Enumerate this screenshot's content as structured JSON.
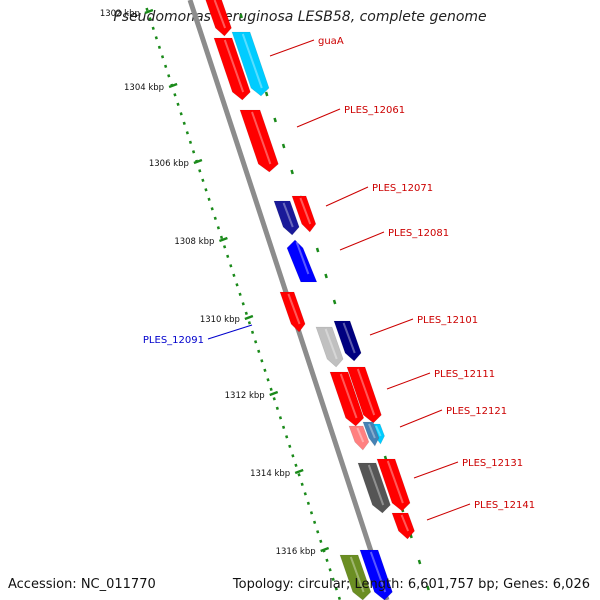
{
  "header": {
    "title": "Pseudomonas aeruginosa LESB58, complete genome"
  },
  "footer": {
    "accession": "Accession: NC_011770",
    "topology": "Topology: circular; Length: 6,601,757 bp; Genes: 6,026"
  },
  "colors": {
    "backbone": "#8c8c8c",
    "tick": "#1a8a1a",
    "label_red": "#cc0000",
    "label_blue": "#0000cc"
  },
  "scale": {
    "ticks": [
      "1302 kbp",
      "1304 kbp",
      "1306 kbp",
      "1308 kbp",
      "1310 kbp",
      "1312 kbp",
      "1314 kbp",
      "1316 kbp"
    ]
  },
  "genes": [
    {
      "name": "guaA",
      "color": "#ff0000",
      "strand": "+"
    },
    {
      "name": "",
      "color": "#00ccff",
      "strand": "+"
    },
    {
      "name": "PLES_12061",
      "color": "#ff0000",
      "strand": "+"
    },
    {
      "name": "PLES_12071",
      "color": "#ff0000",
      "strand": "+"
    },
    {
      "name": "",
      "color": "#1a1a99",
      "strand": "+"
    },
    {
      "name": "PLES_12081",
      "color": "#ff0000",
      "strand": "+"
    },
    {
      "name": "PLES_12091",
      "color": "#0000ff",
      "strand": "-"
    },
    {
      "name": "PLES_12101",
      "color": "#ff0000",
      "strand": "+"
    },
    {
      "name": "",
      "color": "#c0c0c0",
      "strand": "+"
    },
    {
      "name": "PLES_12111",
      "color": "#000080",
      "strand": "+"
    },
    {
      "name": "",
      "color": "#ff0000",
      "strand": "+"
    },
    {
      "name": "PLES_12121",
      "color": "#ff0000",
      "strand": "+"
    },
    {
      "name": "",
      "color": "#ff8080",
      "strand": "+"
    },
    {
      "name": "",
      "color": "#00ccff",
      "strand": "+"
    },
    {
      "name": "PLES_12131",
      "color": "#4682b4",
      "strand": "+"
    },
    {
      "name": "",
      "color": "#ff0000",
      "strand": "+"
    },
    {
      "name": "PLES_12141",
      "color": "#555555",
      "strand": "+"
    },
    {
      "name": "",
      "color": "#ff0000",
      "strand": "+"
    },
    {
      "name": "",
      "color": "#6b8e23",
      "strand": "+"
    },
    {
      "name": "",
      "color": "#0000ff",
      "strand": "+"
    }
  ]
}
